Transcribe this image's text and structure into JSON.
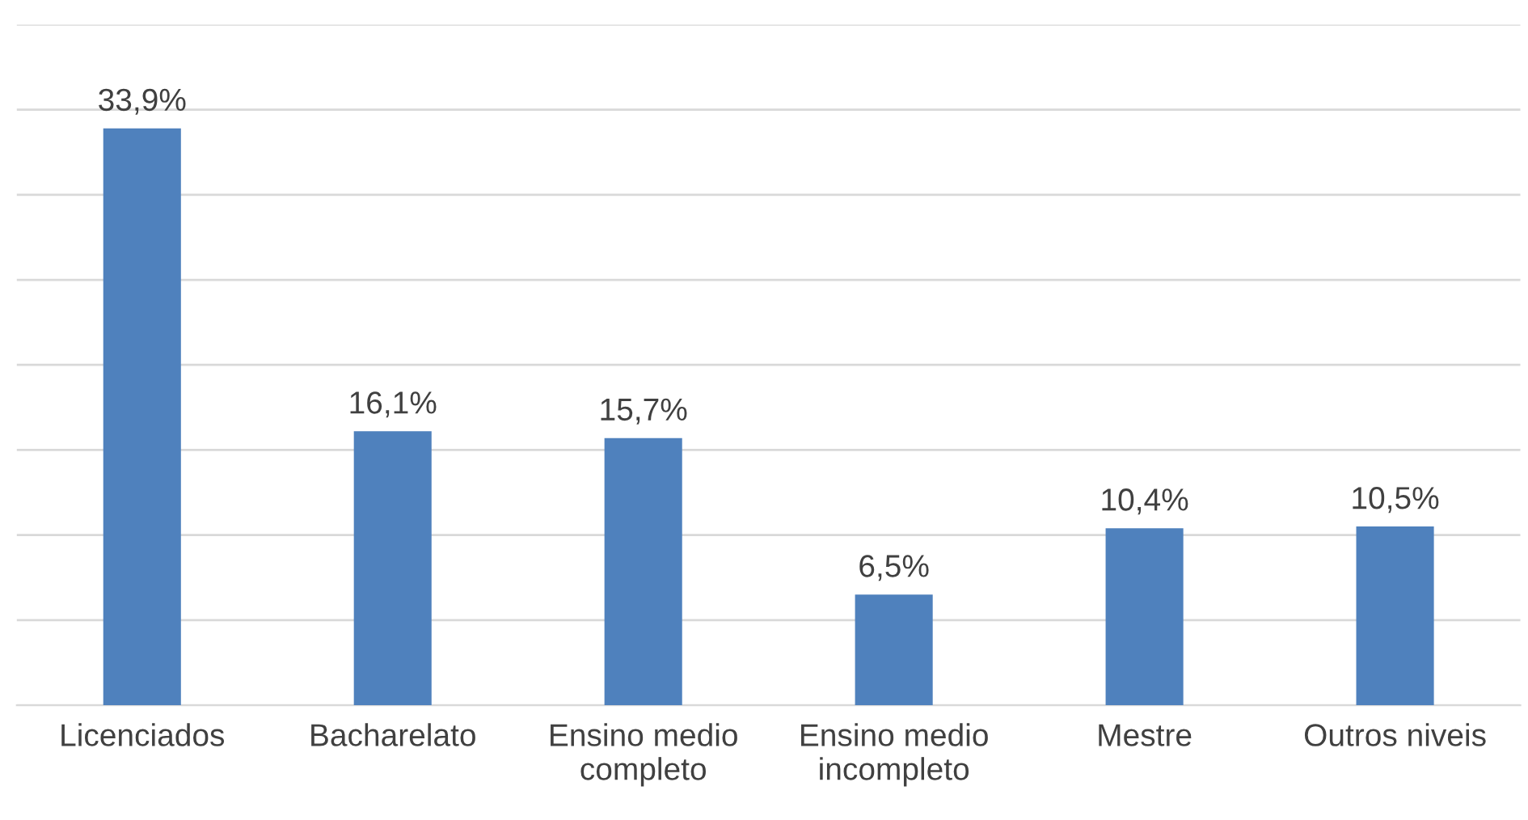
{
  "chart_data": {
    "type": "bar",
    "categories": [
      "Licenciados",
      "Bacharelato",
      "Ensino medio completo",
      "Ensino medio incompleto",
      "Mestre",
      "Outros niveis"
    ],
    "values": [
      33.9,
      16.1,
      15.7,
      6.5,
      10.4,
      10.5
    ],
    "value_labels": [
      "33,9%",
      "16,1%",
      "15,7%",
      "6,5%",
      "10,4%",
      "10,5%"
    ],
    "color": "#4f81bd",
    "ylim": [
      0,
      40
    ],
    "yticks": [
      {
        "value": 0,
        "label": null
      },
      {
        "value": 5,
        "label": null
      },
      {
        "value": 10,
        "label": null
      },
      {
        "value": 15,
        "label": null
      },
      {
        "value": 20,
        "label": null
      },
      {
        "value": 25,
        "label": null
      },
      {
        "value": 30,
        "label": null
      },
      {
        "value": 35,
        "label": null
      },
      {
        "value": 40,
        "label": null
      }
    ],
    "grid": "y",
    "tick_labels": "x"
  }
}
